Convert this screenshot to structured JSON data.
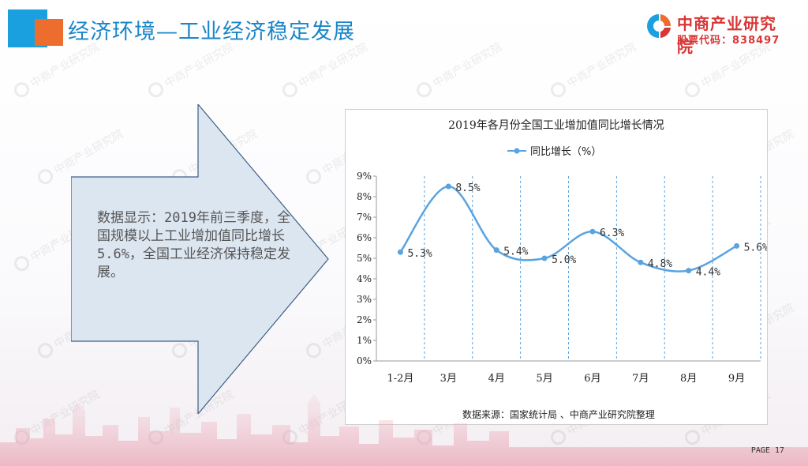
{
  "header": {
    "title": "经济环境—工业经济稳定发展",
    "brand_name": "中商产业研究院",
    "stock_code": "股票代码：838497"
  },
  "watermark_text": "中商产业研究院",
  "arrow_text": "数据显示：2019年前三季度，全国规模以上工业增加值同比增长5.6%，全国工业经济保持稳定发展。",
  "footer": {
    "page": "PAGE 17"
  },
  "colors": {
    "title_blue": "#1a86c9",
    "brand_red": "#d93636",
    "series_blue": "#5aa3e0",
    "arrow_fill": "#dce6f1"
  },
  "chart_data": {
    "type": "line",
    "title": "2019年各月份全国工业增加值同比增长情况",
    "categories": [
      "1-2月",
      "3月",
      "4月",
      "5月",
      "6月",
      "7月",
      "8月",
      "9月"
    ],
    "series": [
      {
        "name": "同比增长（%）",
        "values": [
          5.3,
          8.5,
          5.4,
          5.0,
          6.3,
          4.8,
          4.4,
          5.6
        ]
      }
    ],
    "data_labels": [
      "5.3%",
      "8.5%",
      "5.4%",
      "5.0%",
      "6.3%",
      "4.8%",
      "4.4%",
      "5.6%"
    ],
    "yticks": [
      "0%",
      "1%",
      "2%",
      "3%",
      "4%",
      "5%",
      "6%",
      "7%",
      "8%",
      "9%"
    ],
    "ylim": [
      0,
      9
    ],
    "smooth": true,
    "legend": "top-center",
    "grid": "vertical-dashed",
    "source": "数据来源：国家统计局 、中商产业研究院整理"
  }
}
